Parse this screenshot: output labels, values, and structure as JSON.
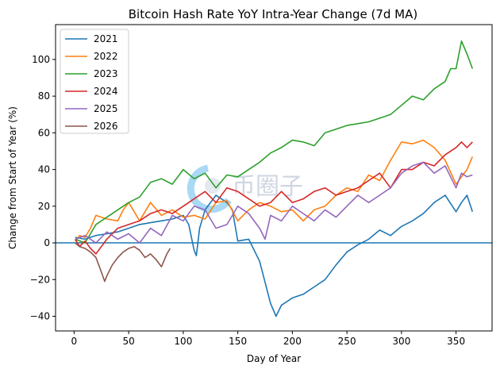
{
  "chart_data": {
    "type": "line",
    "title": "Bitcoin Hash Rate YoY Intra-Year Change (7d MA)",
    "xlabel": "Day of Year",
    "ylabel": "Change from Start of Year (%)",
    "xlim": [
      -17,
      383
    ],
    "ylim": [
      -48,
      119
    ],
    "xticks": [
      0,
      50,
      100,
      150,
      200,
      250,
      300,
      350
    ],
    "yticks": [
      -40,
      -20,
      0,
      20,
      40,
      60,
      80,
      100
    ],
    "grid": false,
    "legend_position": "top-left",
    "reference_line": {
      "y": 0,
      "color": "#1f77b4"
    },
    "watermark": "币圈子",
    "series": [
      {
        "name": "2021",
        "color": "#1f77b4",
        "x": [
          1,
          10,
          20,
          30,
          40,
          50,
          60,
          70,
          80,
          90,
          100,
          105,
          110,
          112,
          115,
          120,
          130,
          140,
          145,
          150,
          160,
          170,
          180,
          185,
          190,
          200,
          210,
          220,
          230,
          240,
          250,
          260,
          270,
          280,
          290,
          300,
          310,
          320,
          330,
          340,
          350,
          355,
          360,
          365
        ],
        "y": [
          3,
          2,
          4,
          5,
          6,
          8,
          10,
          11,
          12,
          13,
          15,
          10,
          -4,
          -7,
          8,
          18,
          26,
          22,
          18,
          1,
          2,
          -10,
          -33,
          -40,
          -34,
          -30,
          -28,
          -24,
          -20,
          -12,
          -5,
          -1,
          2,
          7,
          4,
          9,
          12,
          16,
          22,
          26,
          17,
          22,
          26,
          17
        ]
      },
      {
        "name": "2022",
        "color": "#ff7f0e",
        "x": [
          1,
          5,
          10,
          15,
          20,
          30,
          40,
          45,
          50,
          60,
          70,
          80,
          90,
          100,
          110,
          120,
          130,
          140,
          150,
          160,
          170,
          180,
          190,
          200,
          210,
          220,
          230,
          240,
          250,
          260,
          270,
          280,
          290,
          300,
          310,
          320,
          330,
          340,
          350,
          360,
          365
        ],
        "y": [
          1,
          4,
          3,
          8,
          15,
          13,
          12,
          18,
          22,
          12,
          22,
          15,
          18,
          14,
          15,
          13,
          22,
          23,
          12,
          18,
          22,
          20,
          17,
          18,
          12,
          18,
          20,
          26,
          30,
          28,
          37,
          34,
          45,
          55,
          54,
          56,
          52,
          45,
          32,
          40,
          47
        ]
      },
      {
        "name": "2023",
        "color": "#2ca02c",
        "x": [
          1,
          10,
          20,
          30,
          40,
          50,
          60,
          70,
          80,
          90,
          100,
          110,
          120,
          130,
          140,
          150,
          160,
          170,
          180,
          190,
          200,
          210,
          220,
          230,
          240,
          250,
          260,
          270,
          280,
          290,
          300,
          310,
          320,
          330,
          340,
          345,
          350,
          355,
          360,
          365
        ],
        "y": [
          2,
          0,
          10,
          14,
          18,
          22,
          25,
          33,
          35,
          32,
          40,
          35,
          38,
          30,
          37,
          36,
          40,
          44,
          49,
          52,
          56,
          55,
          53,
          60,
          62,
          64,
          65,
          66,
          68,
          70,
          75,
          80,
          78,
          84,
          88,
          95,
          95,
          110,
          103,
          95
        ]
      },
      {
        "name": "2024",
        "color": "#d62728",
        "x": [
          1,
          5,
          10,
          15,
          20,
          30,
          40,
          50,
          60,
          70,
          80,
          90,
          100,
          110,
          120,
          130,
          140,
          150,
          160,
          170,
          180,
          190,
          200,
          210,
          220,
          230,
          240,
          250,
          260,
          270,
          280,
          290,
          300,
          310,
          320,
          330,
          340,
          350,
          355,
          360,
          365
        ],
        "y": [
          2,
          -2,
          1,
          -3,
          -6,
          2,
          8,
          10,
          12,
          16,
          18,
          16,
          20,
          24,
          28,
          22,
          30,
          28,
          24,
          20,
          22,
          28,
          22,
          24,
          28,
          30,
          26,
          28,
          30,
          34,
          38,
          30,
          40,
          40,
          44,
          42,
          48,
          52,
          55,
          52,
          55
        ]
      },
      {
        "name": "2025",
        "color": "#9467bd",
        "x": [
          1,
          10,
          20,
          30,
          40,
          50,
          60,
          70,
          80,
          90,
          100,
          110,
          120,
          130,
          140,
          145,
          150,
          160,
          170,
          175,
          180,
          190,
          200,
          210,
          220,
          230,
          240,
          250,
          260,
          270,
          280,
          290,
          300,
          310,
          320,
          330,
          340,
          350,
          355,
          360,
          365
        ],
        "y": [
          2,
          4,
          0,
          6,
          2,
          5,
          0,
          8,
          4,
          15,
          12,
          20,
          18,
          8,
          10,
          15,
          20,
          16,
          8,
          2,
          15,
          12,
          20,
          16,
          12,
          18,
          14,
          20,
          26,
          22,
          26,
          30,
          38,
          42,
          44,
          38,
          42,
          30,
          38,
          36,
          37
        ]
      },
      {
        "name": "2026",
        "color": "#8c564b",
        "x": [
          1,
          5,
          10,
          15,
          20,
          25,
          28,
          30,
          35,
          40,
          45,
          50,
          55,
          60,
          65,
          70,
          75,
          80,
          85,
          88
        ],
        "y": [
          0,
          -2,
          -3,
          -5,
          -8,
          -16,
          -21,
          -18,
          -12,
          -8,
          -5,
          -3,
          -2,
          -4,
          -8,
          -6,
          -9,
          -13,
          -6,
          -3
        ]
      }
    ]
  }
}
